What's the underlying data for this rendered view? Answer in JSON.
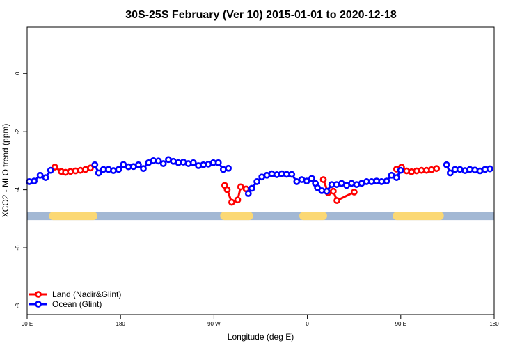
{
  "chart_data": {
    "type": "line",
    "title": "30S-25S February (Ver 10)   2015-01-01 to 2020-12-18",
    "xlabel": "Longitude (deg E)",
    "ylabel": "XCO2 - MLO trend (ppm)",
    "xlim": [
      90,
      450
    ],
    "ylim": [
      -8.3,
      1.6
    ],
    "x_ticks": [
      {
        "value": 90,
        "label": "90 E"
      },
      {
        "value": 162,
        "label": "180"
      },
      {
        "value": 234,
        "label": "90 W"
      },
      {
        "value": 306,
        "label": "0"
      },
      {
        "value": 378,
        "label": "90 E"
      },
      {
        "value": 450,
        "label": "180"
      }
    ],
    "y_ticks": [
      {
        "value": 0,
        "label": "0"
      },
      {
        "value": -2,
        "label": "-2"
      },
      {
        "value": -4,
        "label": "-4"
      },
      {
        "value": -6,
        "label": "-6"
      },
      {
        "value": -8,
        "label": "-8"
      }
    ],
    "band": {
      "y": -4.9,
      "color": "#a3b8d4",
      "land_color": "#fbd874",
      "land_segments": [
        [
          110,
          141
        ],
        [
          242,
          261
        ],
        [
          303,
          318
        ],
        [
          375,
          408
        ]
      ]
    },
    "legend_position": "bottom-left",
    "series": [
      {
        "name": "Land (Nadir&Glint)",
        "color": "#ff0000",
        "segments": [
          [
            [
              111.4,
              -3.22
            ],
            [
              116.3,
              -3.37
            ],
            [
              119.6,
              -3.4
            ],
            [
              123.4,
              -3.37
            ],
            [
              127.3,
              -3.35
            ],
            [
              131.1,
              -3.33
            ],
            [
              135.0,
              -3.3
            ],
            [
              138.8,
              -3.25
            ]
          ],
          [
            [
              242.3,
              -3.85
            ],
            [
              244.2,
              -4.0
            ],
            [
              247.7,
              -4.43
            ],
            [
              252.3,
              -4.35
            ],
            [
              254.6,
              -3.9
            ],
            [
              258.8,
              -3.97
            ]
          ],
          [
            [
              318.3,
              -3.65
            ],
            [
              322.0,
              -4.1
            ],
            [
              326.0,
              -4.05
            ],
            [
              328.8,
              -4.37
            ],
            [
              342.1,
              -4.08
            ]
          ],
          [
            [
              374.8,
              -3.29
            ],
            [
              378.6,
              -3.22
            ],
            [
              382.5,
              -3.35
            ],
            [
              386.3,
              -3.38
            ],
            [
              390.2,
              -3.35
            ],
            [
              394.0,
              -3.33
            ],
            [
              397.9,
              -3.33
            ],
            [
              401.7,
              -3.31
            ],
            [
              405.6,
              -3.27
            ]
          ]
        ]
      },
      {
        "name": "Ocean (Glint)",
        "color": "#0000ff",
        "segments": [
          [
            [
              91.6,
              -3.72
            ],
            [
              95.4,
              -3.7
            ],
            [
              100.0,
              -3.5
            ],
            [
              104.3,
              -3.58
            ],
            [
              108.1,
              -3.33
            ]
          ],
          [
            [
              142.2,
              -3.14
            ],
            [
              145.1,
              -3.42
            ],
            [
              148.8,
              -3.3
            ],
            [
              152.8,
              -3.3
            ],
            [
              156.5,
              -3.34
            ],
            [
              160.5,
              -3.3
            ],
            [
              164.2,
              -3.13
            ],
            [
              168.1,
              -3.21
            ],
            [
              172.0,
              -3.2
            ],
            [
              175.8,
              -3.14
            ],
            [
              179.6,
              -3.27
            ],
            [
              183.5,
              -3.07
            ],
            [
              187.3,
              -3.0
            ],
            [
              191.2,
              -3.01
            ],
            [
              195.0,
              -3.1
            ],
            [
              198.9,
              -2.96
            ],
            [
              202.7,
              -3.02
            ],
            [
              206.6,
              -3.07
            ],
            [
              210.4,
              -3.05
            ],
            [
              214.3,
              -3.1
            ],
            [
              218.1,
              -3.07
            ],
            [
              222.0,
              -3.17
            ],
            [
              225.8,
              -3.14
            ],
            [
              229.7,
              -3.12
            ],
            [
              233.5,
              -3.07
            ],
            [
              237.4,
              -3.07
            ],
            [
              241.2,
              -3.3
            ],
            [
              245.1,
              -3.26
            ]
          ],
          [
            [
              260.5,
              -4.13
            ],
            [
              263.2,
              -3.95
            ],
            [
              267.1,
              -3.72
            ],
            [
              270.9,
              -3.56
            ],
            [
              274.8,
              -3.5
            ],
            [
              278.6,
              -3.45
            ],
            [
              282.5,
              -3.48
            ],
            [
              286.3,
              -3.45
            ],
            [
              290.1,
              -3.47
            ],
            [
              294.0,
              -3.47
            ],
            [
              297.8,
              -3.72
            ],
            [
              301.7,
              -3.65
            ],
            [
              305.5,
              -3.7
            ],
            [
              309.4,
              -3.61
            ],
            [
              312.2,
              -3.78
            ],
            [
              313.8,
              -3.93
            ],
            [
              317.1,
              -4.03
            ],
            [
              320.9,
              -4.05
            ],
            [
              324.8,
              -3.82
            ],
            [
              328.6,
              -3.82
            ],
            [
              332.4,
              -3.78
            ],
            [
              336.3,
              -3.85
            ],
            [
              340.1,
              -3.78
            ],
            [
              344.0,
              -3.82
            ],
            [
              347.8,
              -3.78
            ],
            [
              351.7,
              -3.72
            ],
            [
              355.5,
              -3.72
            ],
            [
              359.4,
              -3.7
            ],
            [
              363.2,
              -3.72
            ],
            [
              367.1,
              -3.7
            ],
            [
              370.9,
              -3.5
            ],
            [
              374.8,
              -3.58
            ],
            [
              377.9,
              -3.33
            ]
          ],
          [
            [
              413.3,
              -3.14
            ],
            [
              416.1,
              -3.42
            ],
            [
              419.8,
              -3.3
            ],
            [
              423.6,
              -3.3
            ],
            [
              427.5,
              -3.34
            ],
            [
              431.3,
              -3.3
            ],
            [
              435.2,
              -3.32
            ],
            [
              439.0,
              -3.35
            ],
            [
              442.9,
              -3.3
            ],
            [
              446.7,
              -3.28
            ]
          ]
        ]
      }
    ]
  }
}
